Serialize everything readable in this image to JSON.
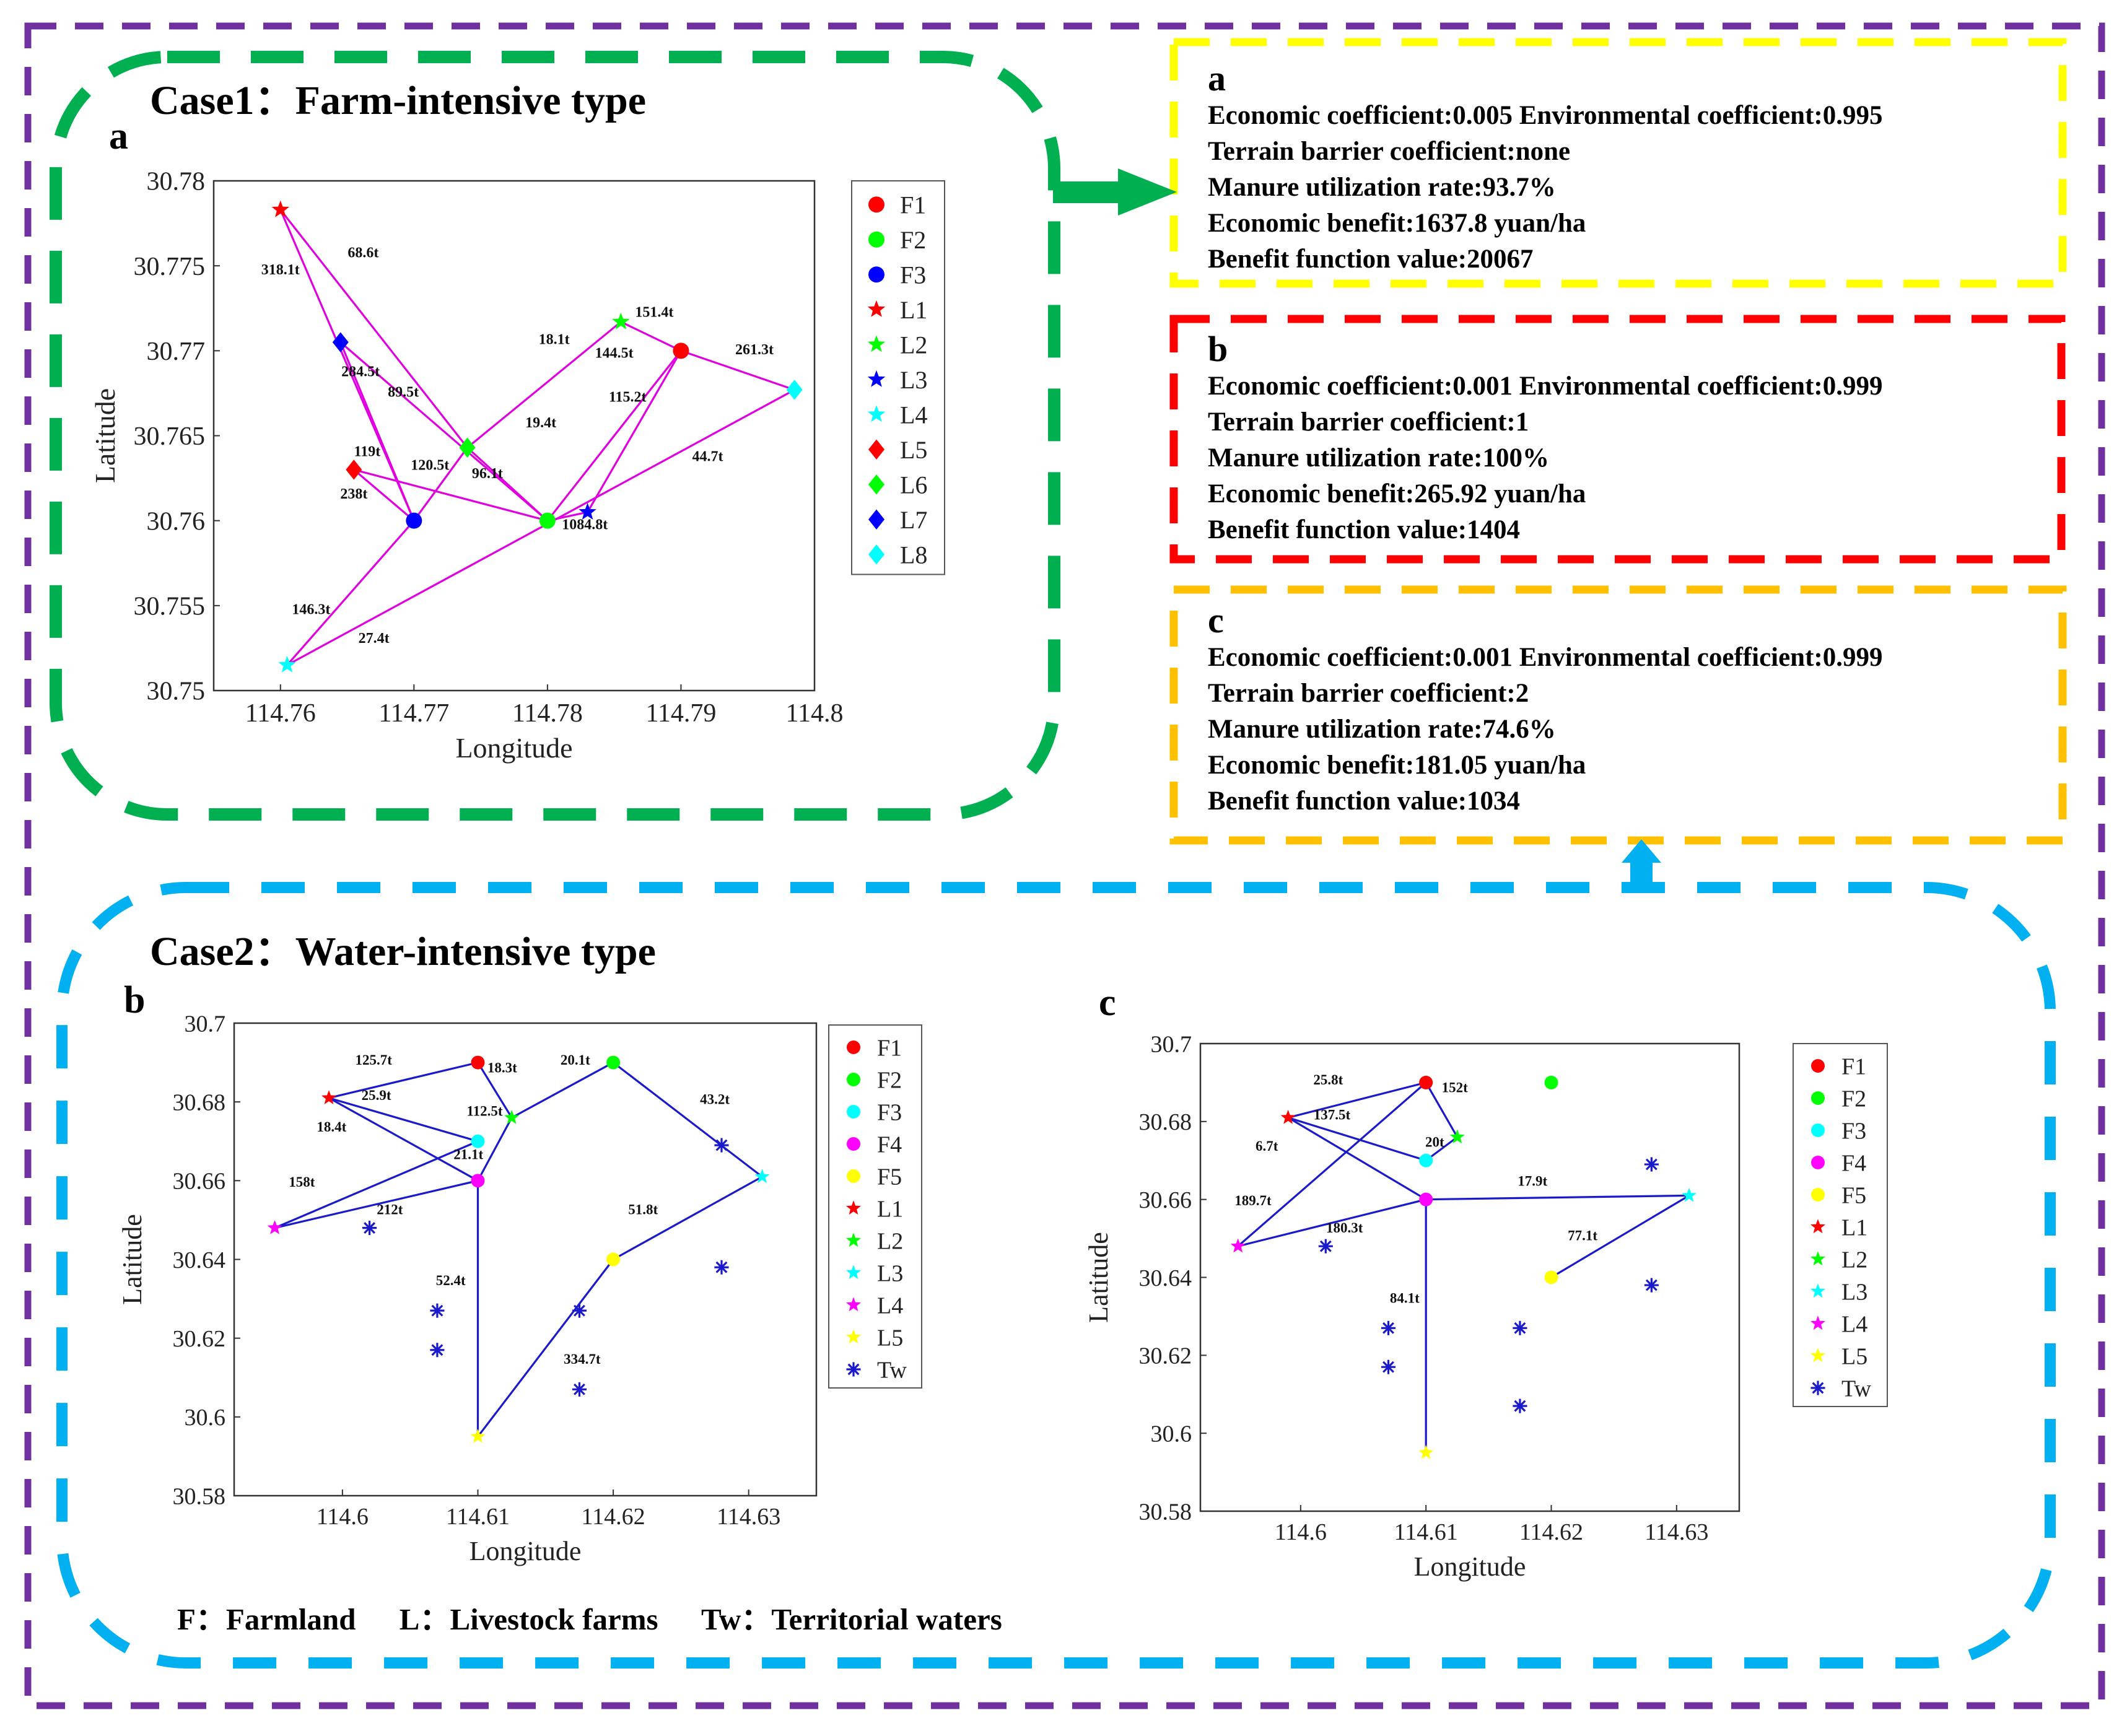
{
  "colors": {
    "outer_border": "#7030a0",
    "case1_border": "#00b050",
    "case2_border": "#00b0f0",
    "panel_a_border": "#ffff00",
    "panel_b_border": "#ff0000",
    "panel_c_border": "#ffc000",
    "route_case1": "#e000e0",
    "route_case2": "#1a1acc"
  },
  "case1": {
    "title": "Case1：Farm-intensive type"
  },
  "case2": {
    "title": "Case2：Water-intensive type"
  },
  "info_panels": [
    {
      "letter": "a",
      "lines": [
        "Economic coefficient:0.005   Environmental coefficient:0.995",
        "Terrain barrier coefficient:none",
        "Manure utilization rate:93.7%",
        "Economic benefit:1637.8 yuan/ha",
        "Benefit function value:20067"
      ]
    },
    {
      "letter": "b",
      "lines": [
        "Economic coefficient:0.001   Environmental coefficient:0.999",
        "Terrain barrier coefficient:1",
        "Manure utilization rate:100%",
        "Economic benefit:265.92 yuan/ha",
        "Benefit function value:1404"
      ]
    },
    {
      "letter": "c",
      "lines": [
        "Economic coefficient:0.001   Environmental coefficient:0.999",
        "Terrain barrier coefficient:2",
        "Manure utilization rate:74.6%",
        "Economic benefit:181.05 yuan/ha",
        "Benefit function value:1034"
      ]
    }
  ],
  "footer": {
    "farmland": "F：Farmland",
    "livestock": "L：Livestock farms",
    "waters": "Tw：Territorial waters"
  },
  "chart_data": [
    {
      "id": "a",
      "type": "scatter",
      "panel_label": "a",
      "xlabel": "Longitude",
      "ylabel": "Latitude",
      "xlim": [
        114.755,
        114.8
      ],
      "ylim": [
        30.75,
        30.78
      ],
      "xticks": [
        114.76,
        114.77,
        114.78,
        114.79,
        114.8
      ],
      "yticks": [
        30.75,
        30.755,
        30.76,
        30.765,
        30.77,
        30.775,
        30.78
      ],
      "xtick_labels": [
        "114.76",
        "114.77",
        "114.78",
        "114.79",
        "114.8"
      ],
      "ytick_labels": [
        "30.75",
        "30.755",
        "30.76",
        "30.765",
        "30.77",
        "30.775",
        "30.78"
      ],
      "legend": [
        "F1",
        "F2",
        "F3",
        "L1",
        "L2",
        "L3",
        "L4",
        "L5",
        "L6",
        "L7",
        "L8"
      ],
      "points": [
        {
          "name": "F1",
          "x": 114.79,
          "y": 30.77,
          "marker": "circle",
          "color": "#ff0000"
        },
        {
          "name": "F2",
          "x": 114.78,
          "y": 30.76,
          "marker": "circle",
          "color": "#00ff00"
        },
        {
          "name": "F3",
          "x": 114.77,
          "y": 30.76,
          "marker": "circle",
          "color": "#0000ff"
        },
        {
          "name": "L1",
          "x": 114.76,
          "y": 30.7783,
          "marker": "star",
          "color": "#ff0000"
        },
        {
          "name": "L2",
          "x": 114.7855,
          "y": 30.7717,
          "marker": "star",
          "color": "#00ff00"
        },
        {
          "name": "L3",
          "x": 114.783,
          "y": 30.7605,
          "marker": "star",
          "color": "#0000ff"
        },
        {
          "name": "L4",
          "x": 114.7605,
          "y": 30.7515,
          "marker": "star",
          "color": "#00ffff"
        },
        {
          "name": "L5",
          "x": 114.7655,
          "y": 30.763,
          "marker": "diamond",
          "color": "#ff0000"
        },
        {
          "name": "L6",
          "x": 114.774,
          "y": 30.7643,
          "marker": "diamond",
          "color": "#00ff00"
        },
        {
          "name": "L7",
          "x": 114.7645,
          "y": 30.7705,
          "marker": "diamond",
          "color": "#0000ff"
        },
        {
          "name": "L8",
          "x": 114.7985,
          "y": 30.7677,
          "marker": "diamond",
          "color": "#00ffff"
        }
      ],
      "links": [
        [
          "L1",
          "L6"
        ],
        [
          "L1",
          "F3"
        ],
        [
          "L7",
          "F2"
        ],
        [
          "L7",
          "F3"
        ],
        [
          "L5",
          "F3"
        ],
        [
          "L5",
          "F2"
        ],
        [
          "F3",
          "L6"
        ],
        [
          "L6",
          "F2"
        ],
        [
          "L6",
          "L2"
        ],
        [
          "L2",
          "F1"
        ],
        [
          "F2",
          "F1"
        ],
        [
          "F1",
          "L8"
        ],
        [
          "L4",
          "F3"
        ],
        [
          "L4",
          "L8"
        ],
        [
          "L3",
          "F1"
        ],
        [
          "L3",
          "F2"
        ]
      ],
      "flow_labels": [
        {
          "text": "318.1t",
          "x": 114.76,
          "y": 30.7745
        },
        {
          "text": "68.6t",
          "x": 114.7662,
          "y": 30.7755
        },
        {
          "text": "151.4t",
          "x": 114.788,
          "y": 30.772
        },
        {
          "text": "18.1t",
          "x": 114.7805,
          "y": 30.7704
        },
        {
          "text": "144.5t",
          "x": 114.785,
          "y": 30.7696
        },
        {
          "text": "261.3t",
          "x": 114.7955,
          "y": 30.7698
        },
        {
          "text": "284.5t",
          "x": 114.766,
          "y": 30.7685
        },
        {
          "text": "89.5t",
          "x": 114.7692,
          "y": 30.7673
        },
        {
          "text": "115.2t",
          "x": 114.786,
          "y": 30.767
        },
        {
          "text": "19.4t",
          "x": 114.7795,
          "y": 30.7655
        },
        {
          "text": "119t",
          "x": 114.7665,
          "y": 30.7638
        },
        {
          "text": "120.5t",
          "x": 114.7712,
          "y": 30.763
        },
        {
          "text": "96.1t",
          "x": 114.7755,
          "y": 30.7625
        },
        {
          "text": "44.7t",
          "x": 114.792,
          "y": 30.7635
        },
        {
          "text": "238t",
          "x": 114.7655,
          "y": 30.7613
        },
        {
          "text": "1084.8t",
          "x": 114.7828,
          "y": 30.7595
        },
        {
          "text": "146.3t",
          "x": 114.7623,
          "y": 30.7545
        },
        {
          "text": "27.4t",
          "x": 114.767,
          "y": 30.7528
        }
      ]
    },
    {
      "id": "b",
      "type": "scatter",
      "panel_label": "b",
      "xlabel": "Longitude",
      "ylabel": "Latitude",
      "xlim": [
        114.592,
        114.635
      ],
      "ylim": [
        30.58,
        30.7
      ],
      "xticks": [
        114.6,
        114.61,
        114.62,
        114.63
      ],
      "yticks": [
        30.58,
        30.6,
        30.62,
        30.64,
        30.66,
        30.68,
        30.7
      ],
      "xtick_labels": [
        "114.6",
        "114.61",
        "114.62",
        "114.63"
      ],
      "ytick_labels": [
        "30.58",
        "30.6",
        "30.62",
        "30.64",
        "30.66",
        "30.68",
        "30.7"
      ],
      "legend": [
        "F1",
        "F2",
        "F3",
        "F4",
        "F5",
        "L1",
        "L2",
        "L3",
        "L4",
        "L5",
        "Tw"
      ],
      "points": [
        {
          "name": "F1",
          "x": 114.61,
          "y": 30.69,
          "marker": "circle",
          "color": "#ff0000"
        },
        {
          "name": "F2",
          "x": 114.62,
          "y": 30.69,
          "marker": "circle",
          "color": "#00ff00"
        },
        {
          "name": "F3",
          "x": 114.61,
          "y": 30.67,
          "marker": "circle",
          "color": "#00ffff"
        },
        {
          "name": "F4",
          "x": 114.61,
          "y": 30.66,
          "marker": "circle",
          "color": "#ff00ff"
        },
        {
          "name": "F5",
          "x": 114.62,
          "y": 30.64,
          "marker": "circle",
          "color": "#ffff00"
        },
        {
          "name": "L1",
          "x": 114.599,
          "y": 30.681,
          "marker": "star",
          "color": "#ff0000"
        },
        {
          "name": "L2",
          "x": 114.6125,
          "y": 30.676,
          "marker": "star",
          "color": "#00ff00"
        },
        {
          "name": "L3",
          "x": 114.631,
          "y": 30.661,
          "marker": "star",
          "color": "#00ffff"
        },
        {
          "name": "L4",
          "x": 114.595,
          "y": 30.648,
          "marker": "star",
          "color": "#ff00ff"
        },
        {
          "name": "L5",
          "x": 114.61,
          "y": 30.595,
          "marker": "star",
          "color": "#ffff00"
        },
        {
          "name": "Tw",
          "x": 114.602,
          "y": 30.648,
          "marker": "asterisk",
          "color": "#1a1acc"
        },
        {
          "name": "Tw",
          "x": 114.607,
          "y": 30.627,
          "marker": "asterisk",
          "color": "#1a1acc"
        },
        {
          "name": "Tw",
          "x": 114.607,
          "y": 30.617,
          "marker": "asterisk",
          "color": "#1a1acc"
        },
        {
          "name": "Tw",
          "x": 114.6175,
          "y": 30.627,
          "marker": "asterisk",
          "color": "#1a1acc"
        },
        {
          "name": "Tw",
          "x": 114.6175,
          "y": 30.607,
          "marker": "asterisk",
          "color": "#1a1acc"
        },
        {
          "name": "Tw",
          "x": 114.628,
          "y": 30.669,
          "marker": "asterisk",
          "color": "#1a1acc"
        },
        {
          "name": "Tw",
          "x": 114.628,
          "y": 30.638,
          "marker": "asterisk",
          "color": "#1a1acc"
        }
      ],
      "links": [
        [
          "L1",
          "F1"
        ],
        [
          "F1",
          "L2"
        ],
        [
          "L1",
          "F3"
        ],
        [
          "L1",
          "F4"
        ],
        [
          "L2",
          "F4"
        ],
        [
          "L2",
          "F2"
        ],
        [
          "F2",
          "L3"
        ],
        [
          "L3",
          "F5"
        ],
        [
          "F5",
          "L5"
        ],
        [
          "F4",
          "L5"
        ],
        [
          "L4",
          "F4"
        ],
        [
          "L4",
          "F3"
        ]
      ],
      "flow_labels": [
        {
          "text": "125.7t",
          "x": 114.6023,
          "y": 30.6895
        },
        {
          "text": "18.3t",
          "x": 114.6118,
          "y": 30.6875
        },
        {
          "text": "20.1t",
          "x": 114.6172,
          "y": 30.6895
        },
        {
          "text": "25.9t",
          "x": 114.6025,
          "y": 30.6805
        },
        {
          "text": "43.2t",
          "x": 114.6275,
          "y": 30.6795
        },
        {
          "text": "18.4t",
          "x": 114.5992,
          "y": 30.6725
        },
        {
          "text": "112.5t",
          "x": 114.6105,
          "y": 30.6765
        },
        {
          "text": "21.1t",
          "x": 114.6093,
          "y": 30.6655
        },
        {
          "text": "158t",
          "x": 114.597,
          "y": 30.6585
        },
        {
          "text": "212t",
          "x": 114.6035,
          "y": 30.6515
        },
        {
          "text": "51.8t",
          "x": 114.6222,
          "y": 30.6515
        },
        {
          "text": "52.4t",
          "x": 114.608,
          "y": 30.6335
        },
        {
          "text": "334.7t",
          "x": 114.6177,
          "y": 30.6135
        }
      ]
    },
    {
      "id": "c",
      "type": "scatter",
      "panel_label": "c",
      "xlabel": "Longitude",
      "ylabel": "Latitude",
      "xlim": [
        114.592,
        114.635
      ],
      "ylim": [
        30.58,
        30.7
      ],
      "xticks": [
        114.6,
        114.61,
        114.62,
        114.63
      ],
      "yticks": [
        30.58,
        30.6,
        30.62,
        30.64,
        30.66,
        30.68,
        30.7
      ],
      "xtick_labels": [
        "114.6",
        "114.61",
        "114.62",
        "114.63"
      ],
      "ytick_labels": [
        "30.58",
        "30.6",
        "30.62",
        "30.64",
        "30.66",
        "30.68",
        "30.7"
      ],
      "legend": [
        "F1",
        "F2",
        "F3",
        "F4",
        "F5",
        "L1",
        "L2",
        "L3",
        "L4",
        "L5",
        "Tw"
      ],
      "points": [
        {
          "name": "F1",
          "x": 114.61,
          "y": 30.69,
          "marker": "circle",
          "color": "#ff0000"
        },
        {
          "name": "F2",
          "x": 114.62,
          "y": 30.69,
          "marker": "circle",
          "color": "#00ff00"
        },
        {
          "name": "F3",
          "x": 114.61,
          "y": 30.67,
          "marker": "circle",
          "color": "#00ffff"
        },
        {
          "name": "F4",
          "x": 114.61,
          "y": 30.66,
          "marker": "circle",
          "color": "#ff00ff"
        },
        {
          "name": "F5",
          "x": 114.62,
          "y": 30.64,
          "marker": "circle",
          "color": "#ffff00"
        },
        {
          "name": "L1",
          "x": 114.599,
          "y": 30.681,
          "marker": "star",
          "color": "#ff0000"
        },
        {
          "name": "L2",
          "x": 114.6125,
          "y": 30.676,
          "marker": "star",
          "color": "#00ff00"
        },
        {
          "name": "L3",
          "x": 114.631,
          "y": 30.661,
          "marker": "star",
          "color": "#00ffff"
        },
        {
          "name": "L4",
          "x": 114.595,
          "y": 30.648,
          "marker": "star",
          "color": "#ff00ff"
        },
        {
          "name": "L5",
          "x": 114.61,
          "y": 30.595,
          "marker": "star",
          "color": "#ffff00"
        },
        {
          "name": "Tw",
          "x": 114.602,
          "y": 30.648,
          "marker": "asterisk",
          "color": "#1a1acc"
        },
        {
          "name": "Tw",
          "x": 114.607,
          "y": 30.627,
          "marker": "asterisk",
          "color": "#1a1acc"
        },
        {
          "name": "Tw",
          "x": 114.607,
          "y": 30.617,
          "marker": "asterisk",
          "color": "#1a1acc"
        },
        {
          "name": "Tw",
          "x": 114.6175,
          "y": 30.627,
          "marker": "asterisk",
          "color": "#1a1acc"
        },
        {
          "name": "Tw",
          "x": 114.6175,
          "y": 30.607,
          "marker": "asterisk",
          "color": "#1a1acc"
        },
        {
          "name": "Tw",
          "x": 114.628,
          "y": 30.669,
          "marker": "asterisk",
          "color": "#1a1acc"
        },
        {
          "name": "Tw",
          "x": 114.628,
          "y": 30.638,
          "marker": "asterisk",
          "color": "#1a1acc"
        }
      ],
      "links": [
        [
          "L1",
          "F1"
        ],
        [
          "F1",
          "L2"
        ],
        [
          "L2",
          "F3"
        ],
        [
          "L1",
          "F3"
        ],
        [
          "L1",
          "F4"
        ],
        [
          "L4",
          "F1"
        ],
        [
          "L4",
          "F4"
        ],
        [
          "F4",
          "L3"
        ],
        [
          "L3",
          "F5"
        ],
        [
          "F4",
          "L5"
        ]
      ],
      "flow_labels": [
        {
          "text": "25.8t",
          "x": 114.6022,
          "y": 30.6895
        },
        {
          "text": "152t",
          "x": 114.6123,
          "y": 30.6875
        },
        {
          "text": "137.5t",
          "x": 114.6025,
          "y": 30.6805
        },
        {
          "text": "20t",
          "x": 114.6107,
          "y": 30.6735
        },
        {
          "text": "6.7t",
          "x": 114.5973,
          "y": 30.6725
        },
        {
          "text": "17.9t",
          "x": 114.6185,
          "y": 30.6635
        },
        {
          "text": "189.7t",
          "x": 114.5962,
          "y": 30.6585
        },
        {
          "text": "180.3t",
          "x": 114.6035,
          "y": 30.6515
        },
        {
          "text": "77.1t",
          "x": 114.6225,
          "y": 30.6495
        },
        {
          "text": "84.1t",
          "x": 114.6083,
          "y": 30.6335
        }
      ]
    }
  ]
}
